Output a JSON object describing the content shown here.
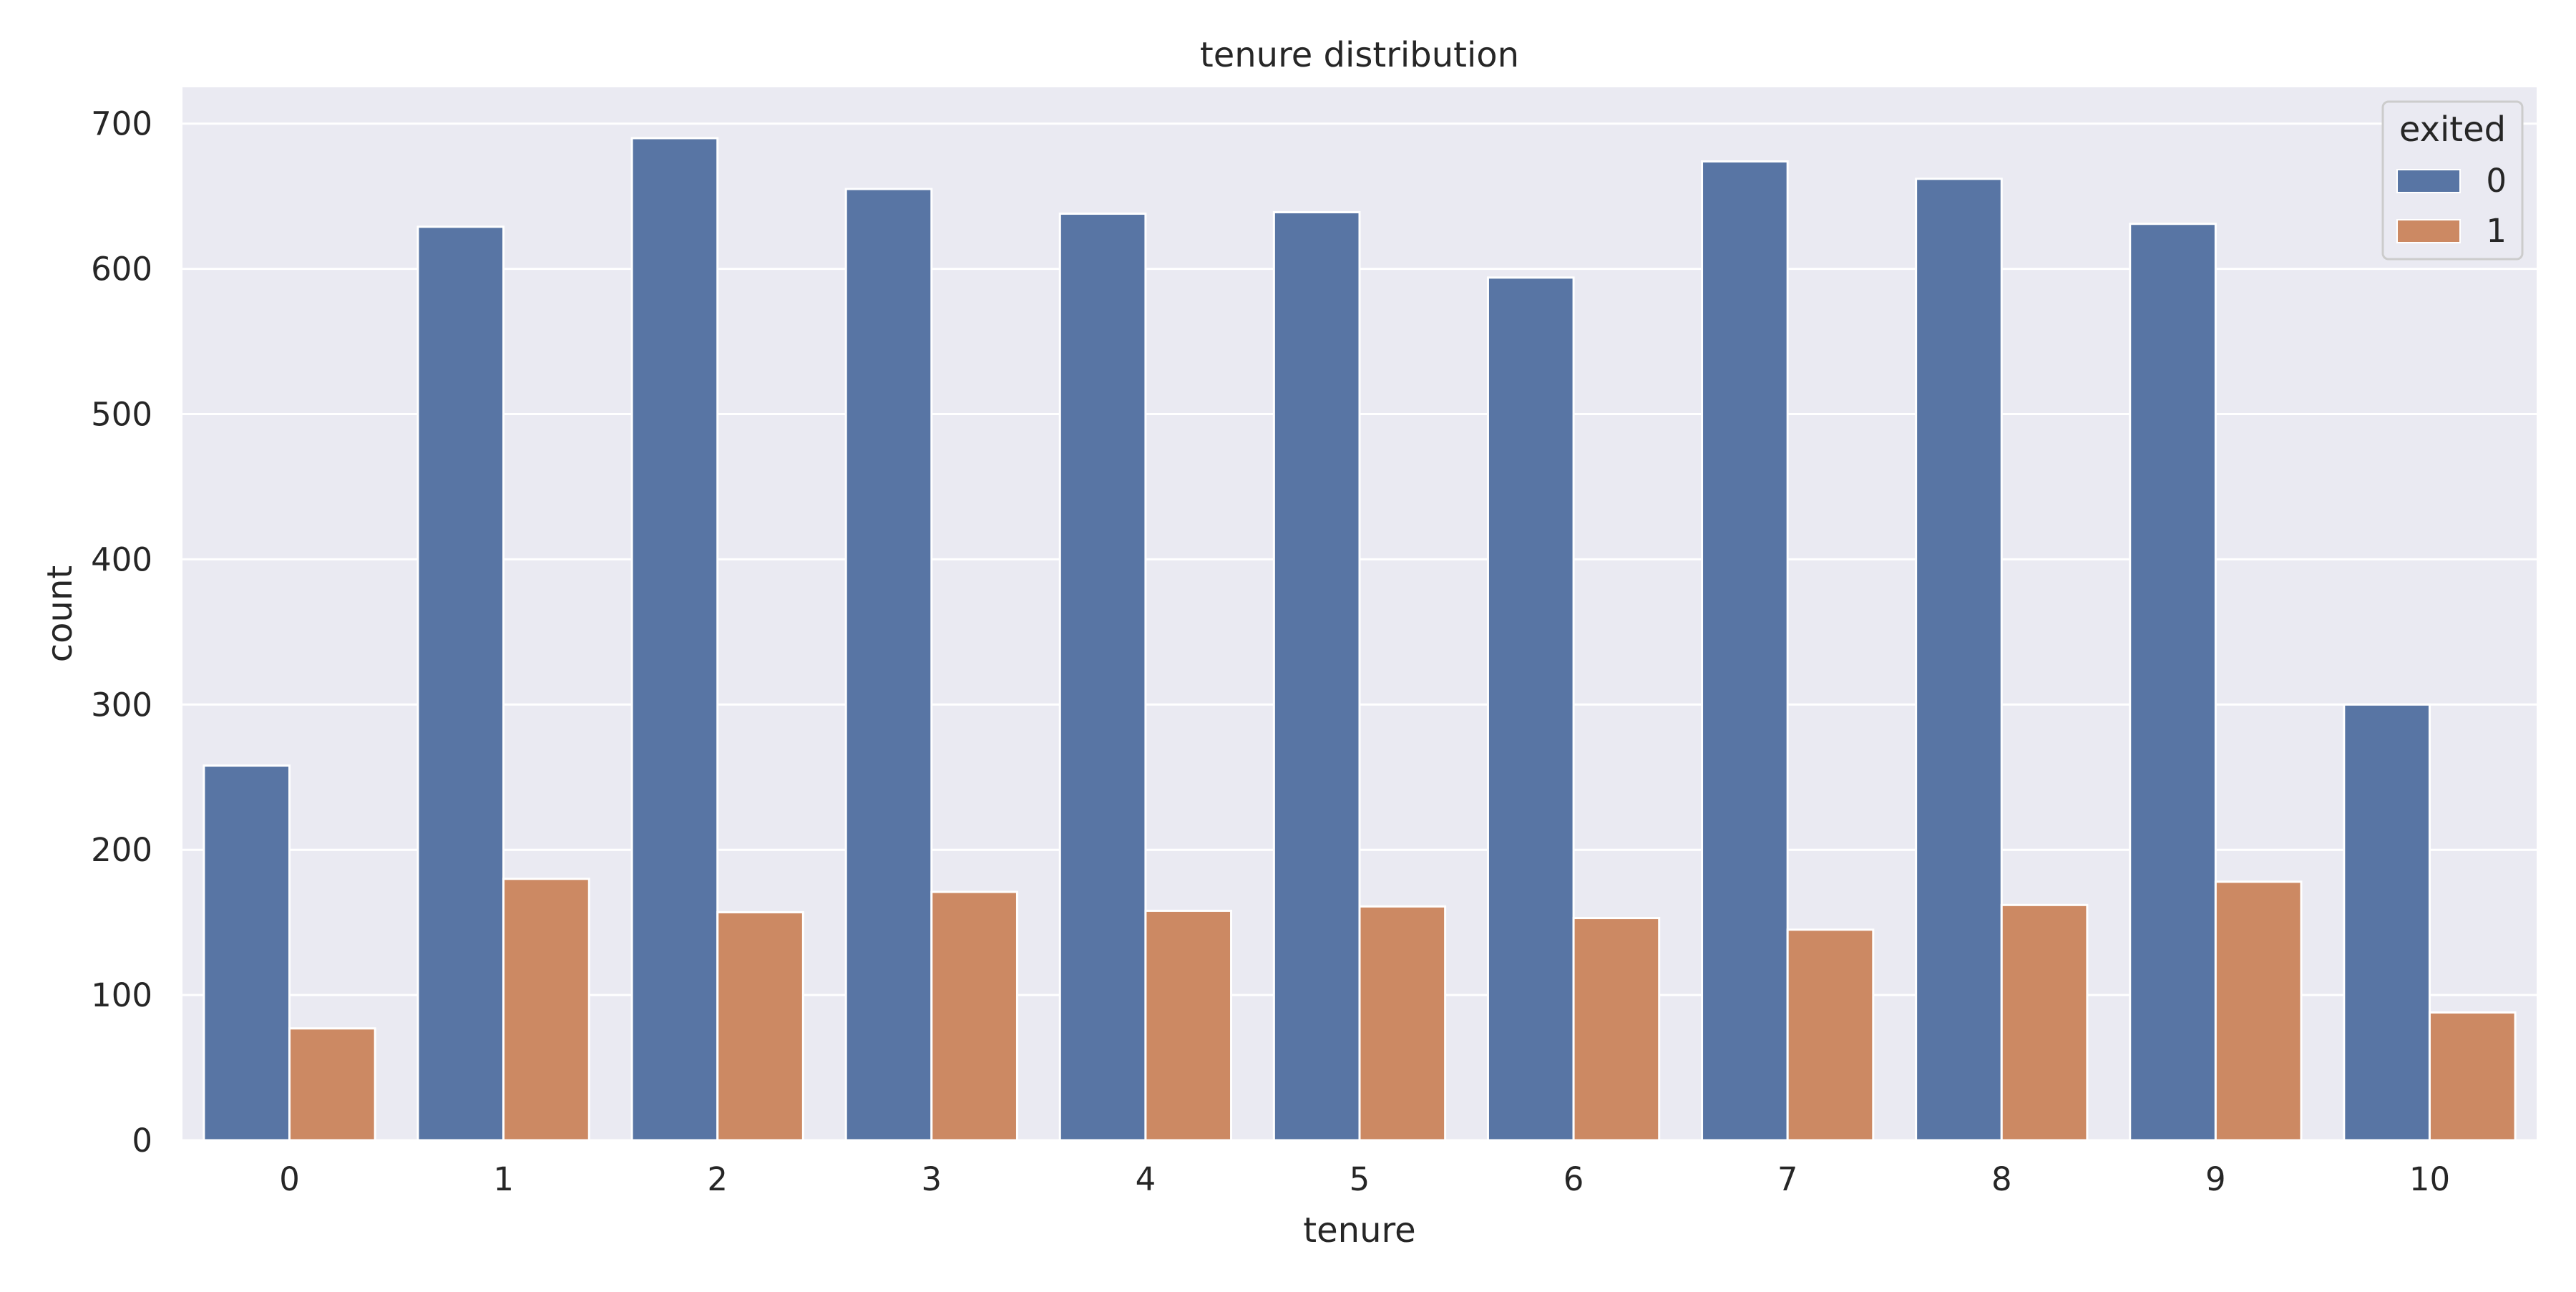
{
  "chart_data": {
    "type": "bar",
    "title": "tenure distribution",
    "xlabel": "tenure",
    "ylabel": "count",
    "categories": [
      "0",
      "1",
      "2",
      "3",
      "4",
      "5",
      "6",
      "7",
      "8",
      "9",
      "10"
    ],
    "ylim": [
      0,
      725
    ],
    "yticks": [
      0,
      100,
      200,
      300,
      400,
      500,
      600,
      700
    ],
    "grid": true,
    "legend": {
      "title": "exited",
      "placement": "top-right"
    },
    "series": [
      {
        "name": "0",
        "color": "#5875a4",
        "values": [
          258,
          629,
          690,
          655,
          638,
          639,
          594,
          674,
          662,
          631,
          300
        ]
      },
      {
        "name": "1",
        "color": "#cc8963",
        "values": [
          77,
          180,
          157,
          171,
          158,
          161,
          153,
          145,
          162,
          178,
          88
        ]
      }
    ]
  },
  "colors": {
    "plot_background": "#eaeaf2",
    "grid": "#ffffff",
    "text": "#262626"
  }
}
